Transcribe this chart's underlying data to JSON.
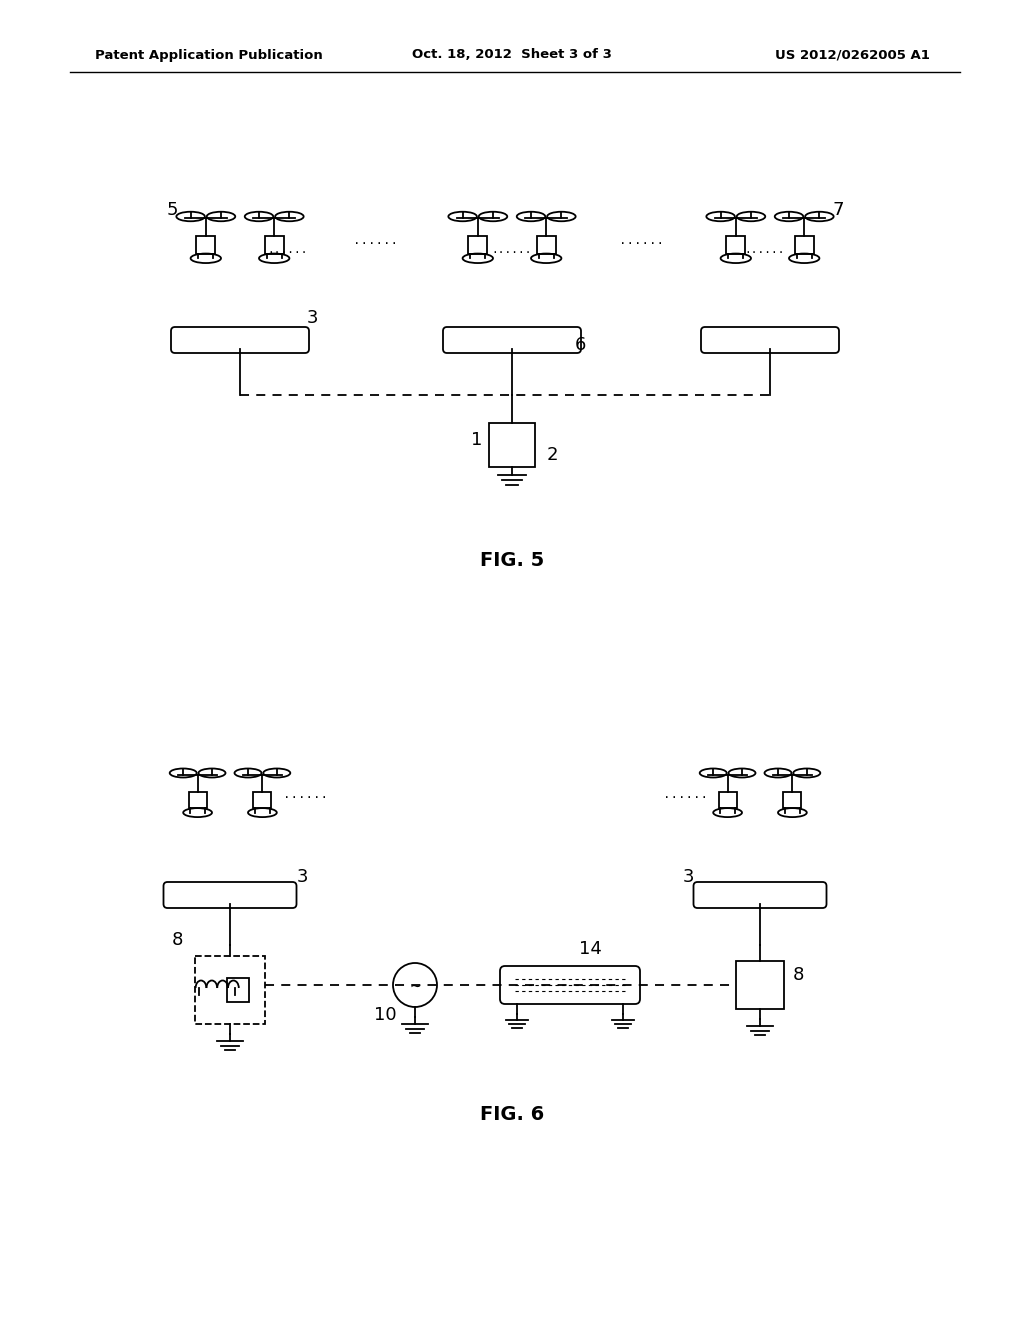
{
  "bg_color": "#ffffff",
  "line_color": "#000000",
  "header_left": "Patent Application Publication",
  "header_center": "Oct. 18, 2012  Sheet 3 of 3",
  "header_right": "US 2012/0262005 A1",
  "fig5_label": "FIG. 5",
  "fig6_label": "FIG. 6"
}
